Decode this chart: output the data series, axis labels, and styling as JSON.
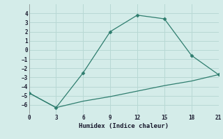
{
  "xlabel": "Humidex (Indice chaleur)",
  "upper_x": [
    0,
    3,
    6,
    9,
    12,
    15,
    18,
    21
  ],
  "upper_y": [
    -4.7,
    -6.3,
    -2.5,
    2.0,
    3.8,
    3.4,
    -0.6,
    -2.7
  ],
  "lower_x": [
    0,
    3,
    6,
    9,
    12,
    15,
    18,
    21
  ],
  "lower_y": [
    -4.7,
    -6.3,
    -5.6,
    -5.1,
    -4.5,
    -3.9,
    -3.4,
    -2.7
  ],
  "line_color": "#2e7d6e",
  "bg_color": "#d4ece9",
  "grid_color": "#b8d8d4",
  "xlim": [
    0,
    21
  ],
  "ylim": [
    -7,
    5
  ],
  "xticks": [
    0,
    3,
    6,
    9,
    12,
    15,
    18,
    21
  ],
  "yticks": [
    -6,
    -5,
    -4,
    -3,
    -2,
    -1,
    0,
    1,
    2,
    3,
    4
  ],
  "markersize": 2.5,
  "linewidth": 0.9,
  "tick_fontsize": 5.5,
  "xlabel_fontsize": 6.5
}
